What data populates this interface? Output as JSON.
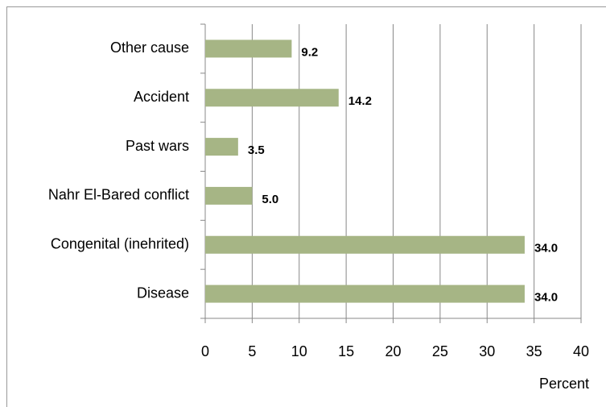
{
  "chart_data": {
    "type": "hbar",
    "categories": [
      "Other cause",
      "Accident",
      "Past wars",
      "Nahr El-Bared conflict",
      "Congenital (inehrited)",
      "Disease"
    ],
    "values": [
      9.2,
      14.2,
      3.5,
      5.0,
      34.0,
      34.0
    ],
    "value_labels": [
      "9.2",
      "14.2",
      "3.5",
      "5.0",
      "34.0",
      "34.0"
    ],
    "color": "#a6b585",
    "xlim": [
      0,
      40
    ],
    "xticks": [
      0,
      5,
      10,
      15,
      20,
      25,
      30,
      35,
      40
    ],
    "xlabel": "Percent",
    "grid": true
  }
}
